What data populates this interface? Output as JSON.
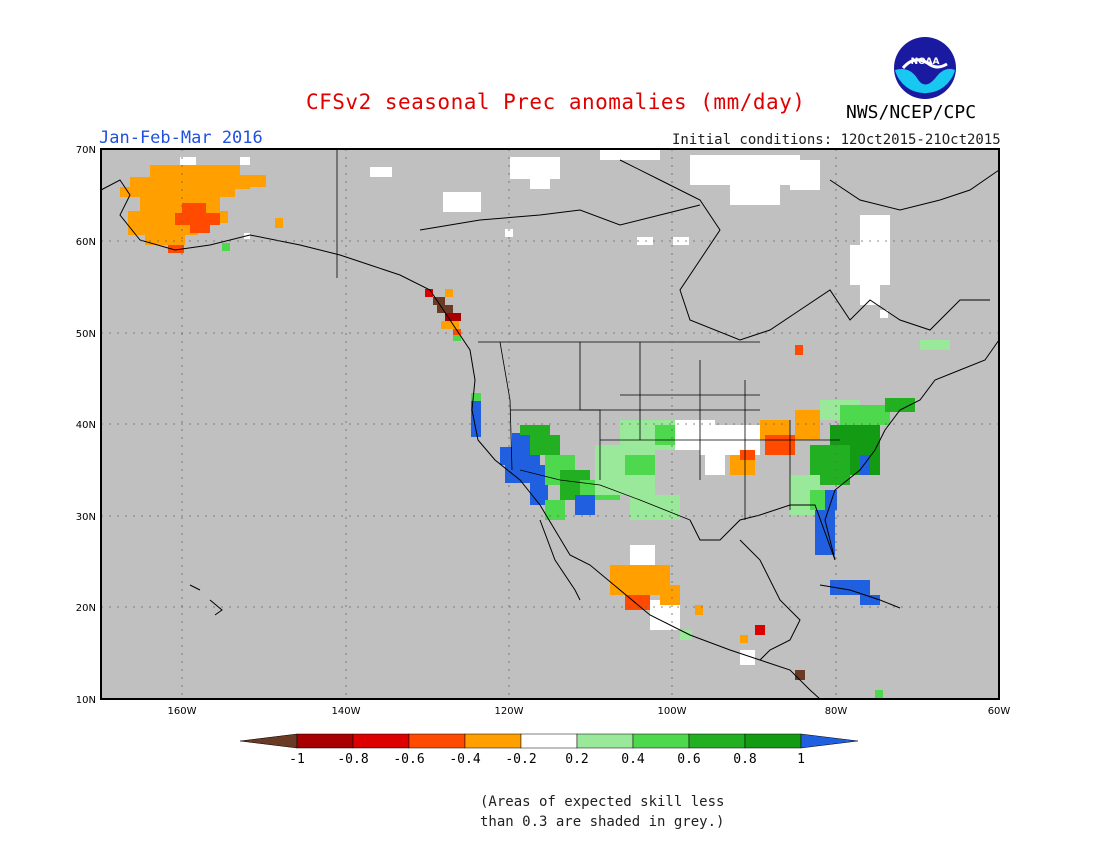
{
  "header": {
    "title": "CFSv2 seasonal Prec anomalies (mm/day)",
    "period": "Jan-Feb-Mar 2016",
    "initial_conditions": "Initial conditions: 12Oct2015-21Oct2015",
    "agency": "NWS/NCEP/CPC",
    "logo_text": "NOAA"
  },
  "map": {
    "lon_range": [
      -170,
      -60
    ],
    "lat_range": [
      10,
      70
    ],
    "lat_labels": [
      "70N",
      "60N",
      "50N",
      "40N",
      "30N",
      "20N",
      "10N"
    ],
    "lon_labels": [
      "160W",
      "140W",
      "120W",
      "100W",
      "80W",
      "60W"
    ],
    "background": "#c0c0c0"
  },
  "colorbar": {
    "labels": [
      "-1",
      "-0.8",
      "-0.6",
      "-0.4",
      "-0.2",
      "0.2",
      "0.4",
      "0.6",
      "0.8",
      "1"
    ],
    "colors": [
      "#6b3a24",
      "#a80000",
      "#dd0000",
      "#ff4a00",
      "#ffa000",
      "#ffffff",
      "#9ae89a",
      "#4ed84e",
      "#22b022",
      "#139c13",
      "#2060e0"
    ]
  },
  "footnote": {
    "line1": "(Areas of expected skill less",
    "line2": "than 0.3 are shaded in grey.)"
  }
}
